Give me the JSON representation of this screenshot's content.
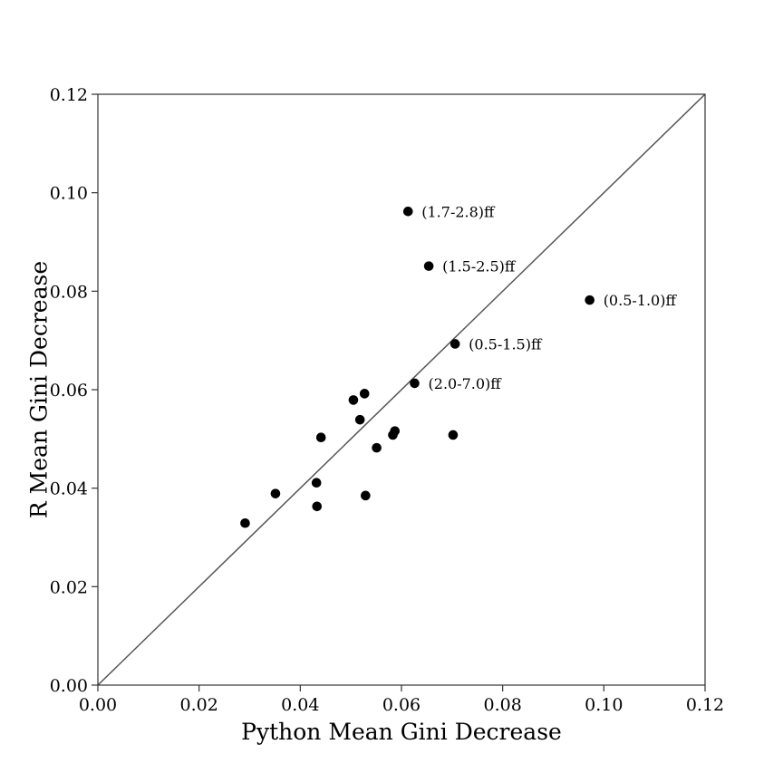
{
  "chart_data": {
    "type": "scatter",
    "title": "",
    "xlabel": "Python Mean Gini Decrease",
    "ylabel": "R Mean Gini Decrease",
    "xlim": [
      0.0,
      0.12
    ],
    "ylim": [
      0.0,
      0.12
    ],
    "xticks": [
      "0.00",
      "0.02",
      "0.04",
      "0.06",
      "0.08",
      "0.10",
      "0.12"
    ],
    "yticks": [
      "0.00",
      "0.02",
      "0.04",
      "0.06",
      "0.08",
      "0.10",
      "0.12"
    ],
    "reference_line": "y = x",
    "grid": false,
    "points": [
      {
        "x": 0.0613,
        "y": 0.0962,
        "label": "(1.7-2.8)ff"
      },
      {
        "x": 0.0654,
        "y": 0.0851,
        "label": "(1.5-2.5)ff"
      },
      {
        "x": 0.0972,
        "y": 0.0782,
        "label": "(0.5-1.0)ff"
      },
      {
        "x": 0.0706,
        "y": 0.0693,
        "label": "(0.5-1.5)ff"
      },
      {
        "x": 0.0626,
        "y": 0.0613,
        "label": "(2.0-7.0)ff"
      },
      {
        "x": 0.0527,
        "y": 0.0592,
        "label": ""
      },
      {
        "x": 0.0505,
        "y": 0.0579,
        "label": ""
      },
      {
        "x": 0.0518,
        "y": 0.0539,
        "label": ""
      },
      {
        "x": 0.0587,
        "y": 0.0516,
        "label": ""
      },
      {
        "x": 0.0583,
        "y": 0.0508,
        "label": ""
      },
      {
        "x": 0.0702,
        "y": 0.0508,
        "label": ""
      },
      {
        "x": 0.0441,
        "y": 0.0503,
        "label": ""
      },
      {
        "x": 0.0551,
        "y": 0.0482,
        "label": ""
      },
      {
        "x": 0.0432,
        "y": 0.0411,
        "label": ""
      },
      {
        "x": 0.0351,
        "y": 0.0389,
        "label": ""
      },
      {
        "x": 0.0529,
        "y": 0.0385,
        "label": ""
      },
      {
        "x": 0.0433,
        "y": 0.0363,
        "label": ""
      },
      {
        "x": 0.0291,
        "y": 0.0329,
        "label": ""
      }
    ]
  }
}
